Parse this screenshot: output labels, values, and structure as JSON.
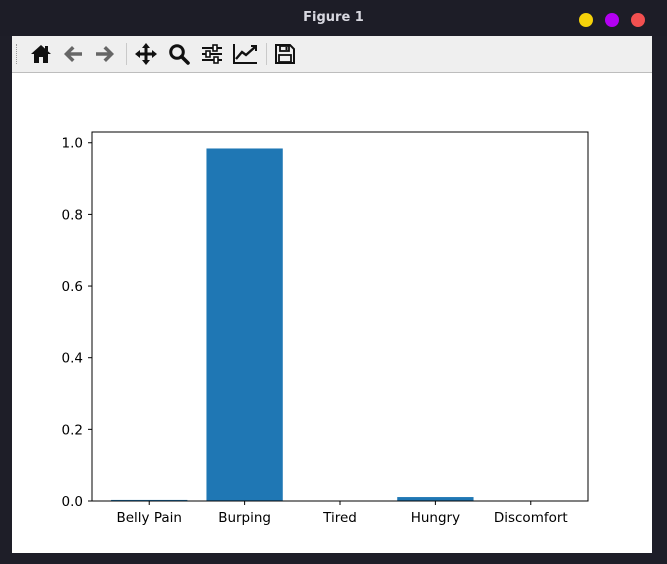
{
  "window": {
    "title": "Figure 1",
    "controls": [
      {
        "name": "minimize-button",
        "color": "#f5d20a"
      },
      {
        "name": "maximize-button",
        "color": "#b300f2"
      },
      {
        "name": "close-button",
        "color": "#f25050"
      }
    ]
  },
  "toolbar": {
    "buttons": [
      {
        "name": "home-button",
        "icon": "home-icon"
      },
      {
        "name": "back-button",
        "icon": "arrow-left-icon"
      },
      {
        "name": "forward-button",
        "icon": "arrow-right-icon"
      },
      {
        "name": "pan-button",
        "icon": "move-icon"
      },
      {
        "name": "zoom-button",
        "icon": "magnifier-icon"
      },
      {
        "name": "configure-subplots-button",
        "icon": "sliders-icon"
      },
      {
        "name": "edit-axis-button",
        "icon": "line-chart-icon"
      },
      {
        "name": "save-button",
        "icon": "floppy-disk-icon"
      }
    ]
  },
  "chart_data": {
    "type": "bar",
    "categories": [
      "Belly Pain",
      "Burping",
      "Tired",
      "Hungry",
      "Discomfort"
    ],
    "values": [
      0.003,
      0.984,
      0.001,
      0.011,
      0.001
    ],
    "ylim": [
      0,
      1.03
    ],
    "yticks": [
      "0.0",
      "0.2",
      "0.4",
      "0.6",
      "0.8",
      "1.0"
    ],
    "ytick_values": [
      0.0,
      0.2,
      0.4,
      0.6,
      0.8,
      1.0
    ],
    "bar_color": "#1f77b4",
    "grid": false
  }
}
